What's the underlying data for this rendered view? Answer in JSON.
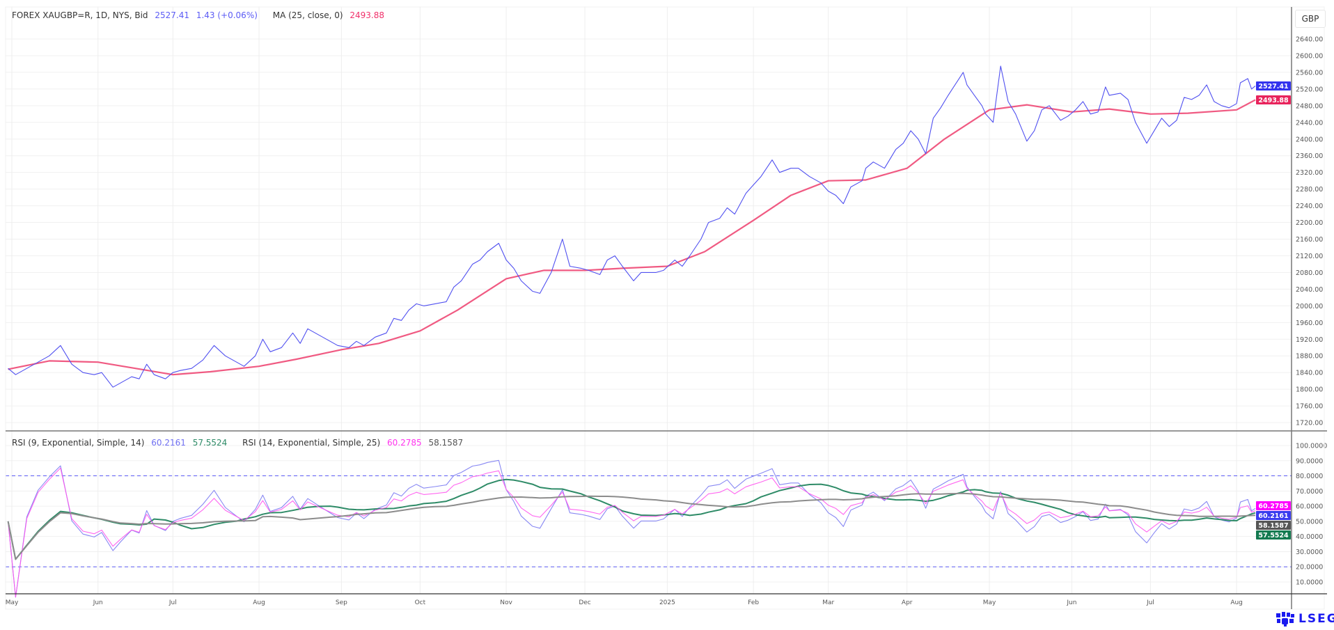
{
  "header": {
    "instrument": "FOREX XAUGBP=R, 1D, NYS, Bid",
    "last": "2527.41",
    "change": "1.43 (+0.06%)",
    "ma_label": "MA (25, close, 0)",
    "ma_value": "2493.88",
    "currency": "GBP"
  },
  "rsi_header": {
    "rsi1_label": "RSI (9, Exponential, Simple, 14)",
    "rsi1_value": "60.2161",
    "rsi1_ma_value": "57.5524",
    "rsi2_label": "RSI (14, Exponential, Simple, 25)",
    "rsi2_value": "60.2785",
    "rsi2_ma_value": "58.1587"
  },
  "logo": "LSEG",
  "colors": {
    "price": "#5050f0",
    "ma": "#f05a82",
    "rsi1": "#7b7bf2",
    "rsi1_ma": "#2e8b67",
    "rsi2": "#ff55ee",
    "rsi2_ma": "#8c8c8c",
    "price_tag": "#3333ee",
    "ma_tag": "#e8245c",
    "rsi2_tag": "#ff00ff",
    "rsi1_tag": "#3a3aee",
    "rsi2_ma_tag": "#555555",
    "rsi1_ma_tag": "#137a50"
  },
  "chart_data": [
    {
      "type": "line",
      "title": "FOREX XAUGBP=R, 1D, NYS, Bid",
      "yunit": "GBP",
      "ylim": [
        1700,
        2660
      ],
      "y_ticks": [
        "2640.00",
        "2600.00",
        "2560.00",
        "2520.00",
        "2480.00",
        "2440.00",
        "2400.00",
        "2360.00",
        "2320.00",
        "2280.00",
        "2240.00",
        "2200.00",
        "2160.00",
        "2120.00",
        "2080.00",
        "2040.00",
        "2000.00",
        "1960.00",
        "1920.00",
        "1880.00",
        "1840.00",
        "1800.00",
        "1760.00",
        "1720.00"
      ],
      "x_ticks": [
        {
          "date": "2024-05-01",
          "label": "May"
        },
        {
          "date": "2024-06-03",
          "label": "Jun"
        },
        {
          "date": "2024-07-01",
          "label": "Jul"
        },
        {
          "date": "2024-08-01",
          "label": "Aug"
        },
        {
          "date": "2024-09-02",
          "label": "Sep"
        },
        {
          "date": "2024-10-01",
          "label": "Oct"
        },
        {
          "date": "2024-11-01",
          "label": "Nov"
        },
        {
          "date": "2024-12-02",
          "label": "Dec"
        },
        {
          "date": "2025-01-01",
          "label": "2025"
        },
        {
          "date": "2025-02-03",
          "label": "Feb"
        },
        {
          "date": "2025-03-03",
          "label": "Mar"
        },
        {
          "date": "2025-04-01",
          "label": "Apr"
        },
        {
          "date": "2025-05-01",
          "label": "May"
        },
        {
          "date": "2025-06-02",
          "label": "Jun"
        },
        {
          "date": "2025-07-01",
          "label": "Jul"
        },
        {
          "date": "2025-08-01",
          "label": "Aug"
        }
      ],
      "grid": true,
      "series": [
        {
          "name": "FOREX XAUGBP=R, 1D, NYS, Bid",
          "points": [
            [
              "2024-04-30",
              1850
            ],
            [
              "2024-05-02",
              1835
            ],
            [
              "2024-05-07",
              1850
            ],
            [
              "2024-05-10",
              1865
            ],
            [
              "2024-05-15",
              1880
            ],
            [
              "2024-05-20",
              1905
            ],
            [
              "2024-05-23",
              1860
            ],
            [
              "2024-05-28",
              1840
            ],
            [
              "2024-05-31",
              1835
            ],
            [
              "2024-06-04",
              1840
            ],
            [
              "2024-06-07",
              1805
            ],
            [
              "2024-06-11",
              1815
            ],
            [
              "2024-06-14",
              1830
            ],
            [
              "2024-06-18",
              1825
            ],
            [
              "2024-06-20",
              1860
            ],
            [
              "2024-06-24",
              1835
            ],
            [
              "2024-06-27",
              1825
            ],
            [
              "2024-07-01",
              1840
            ],
            [
              "2024-07-03",
              1845
            ],
            [
              "2024-07-08",
              1850
            ],
            [
              "2024-07-11",
              1870
            ],
            [
              "2024-07-16",
              1905
            ],
            [
              "2024-07-19",
              1880
            ],
            [
              "2024-07-24",
              1865
            ],
            [
              "2024-07-26",
              1855
            ],
            [
              "2024-07-31",
              1880
            ],
            [
              "2024-08-02",
              1920
            ],
            [
              "2024-08-06",
              1890
            ],
            [
              "2024-08-09",
              1900
            ],
            [
              "2024-08-14",
              1935
            ],
            [
              "2024-08-16",
              1910
            ],
            [
              "2024-08-20",
              1945
            ],
            [
              "2024-08-23",
              1930
            ],
            [
              "2024-08-28",
              1915
            ],
            [
              "2024-08-30",
              1905
            ],
            [
              "2024-09-04",
              1900
            ],
            [
              "2024-09-06",
              1915
            ],
            [
              "2024-09-10",
              1905
            ],
            [
              "2024-09-13",
              1925
            ],
            [
              "2024-09-18",
              1935
            ],
            [
              "2024-09-20",
              1970
            ],
            [
              "2024-09-24",
              1965
            ],
            [
              "2024-09-26",
              1990
            ],
            [
              "2024-09-30",
              2005
            ],
            [
              "2024-10-02",
              2000
            ],
            [
              "2024-10-07",
              2005
            ],
            [
              "2024-10-10",
              2010
            ],
            [
              "2024-10-14",
              2045
            ],
            [
              "2024-10-16",
              2060
            ],
            [
              "2024-10-21",
              2100
            ],
            [
              "2024-10-23",
              2110
            ],
            [
              "2024-10-25",
              2130
            ],
            [
              "2024-10-30",
              2150
            ],
            [
              "2024-11-01",
              2110
            ],
            [
              "2024-11-05",
              2090
            ],
            [
              "2024-11-07",
              2060
            ],
            [
              "2024-11-12",
              2035
            ],
            [
              "2024-11-14",
              2030
            ],
            [
              "2024-11-19",
              2080
            ],
            [
              "2024-11-22",
              2160
            ],
            [
              "2024-11-26",
              2095
            ],
            [
              "2024-11-29",
              2090
            ],
            [
              "2024-12-03",
              2085
            ],
            [
              "2024-12-06",
              2075
            ],
            [
              "2024-12-10",
              2110
            ],
            [
              "2024-12-12",
              2120
            ],
            [
              "2024-12-16",
              2095
            ],
            [
              "2024-12-19",
              2060
            ],
            [
              "2024-12-23",
              2080
            ],
            [
              "2024-12-27",
              2080
            ],
            [
              "2024-12-31",
              2085
            ],
            [
              "2025-01-03",
              2110
            ],
            [
              "2025-01-07",
              2095
            ],
            [
              "2025-01-09",
              2120
            ],
            [
              "2025-01-14",
              2160
            ],
            [
              "2025-01-16",
              2200
            ],
            [
              "2025-01-21",
              2210
            ],
            [
              "2025-01-23",
              2235
            ],
            [
              "2025-01-27",
              2220
            ],
            [
              "2025-01-30",
              2270
            ],
            [
              "2025-02-03",
              2290
            ],
            [
              "2025-02-05",
              2310
            ],
            [
              "2025-02-10",
              2350
            ],
            [
              "2025-02-12",
              2320
            ],
            [
              "2025-02-17",
              2330
            ],
            [
              "2025-02-19",
              2330
            ],
            [
              "2025-02-24",
              2310
            ],
            [
              "2025-02-27",
              2295
            ],
            [
              "2025-03-03",
              2275
            ],
            [
              "2025-03-05",
              2265
            ],
            [
              "2025-03-07",
              2245
            ],
            [
              "2025-03-11",
              2285
            ],
            [
              "2025-03-14",
              2300
            ],
            [
              "2025-03-17",
              2330
            ],
            [
              "2025-03-19",
              2345
            ],
            [
              "2025-03-24",
              2330
            ],
            [
              "2025-03-27",
              2375
            ],
            [
              "2025-03-31",
              2390
            ],
            [
              "2025-04-02",
              2420
            ],
            [
              "2025-04-04",
              2400
            ],
            [
              "2025-04-08",
              2365
            ],
            [
              "2025-04-10",
              2450
            ],
            [
              "2025-04-14",
              2475
            ],
            [
              "2025-04-16",
              2505
            ],
            [
              "2025-04-22",
              2560
            ],
            [
              "2025-04-23",
              2530
            ],
            [
              "2025-04-25",
              2505
            ],
            [
              "2025-04-29",
              2480
            ],
            [
              "2025-04-30",
              2460
            ],
            [
              "2025-05-02",
              2440
            ],
            [
              "2025-05-06",
              2575
            ],
            [
              "2025-05-08",
              2490
            ],
            [
              "2025-05-12",
              2460
            ],
            [
              "2025-05-15",
              2395
            ],
            [
              "2025-05-19",
              2420
            ],
            [
              "2025-05-21",
              2470
            ],
            [
              "2025-05-23",
              2480
            ],
            [
              "2025-05-28",
              2445
            ],
            [
              "2025-05-30",
              2455
            ],
            [
              "2025-06-03",
              2470
            ],
            [
              "2025-06-05",
              2490
            ],
            [
              "2025-06-09",
              2460
            ],
            [
              "2025-06-11",
              2465
            ],
            [
              "2025-06-13",
              2525
            ],
            [
              "2025-06-16",
              2505
            ],
            [
              "2025-06-19",
              2510
            ],
            [
              "2025-06-23",
              2495
            ],
            [
              "2025-06-25",
              2440
            ],
            [
              "2025-06-30",
              2390
            ],
            [
              "2025-07-02",
              2420
            ],
            [
              "2025-07-04",
              2450
            ],
            [
              "2025-07-08",
              2430
            ],
            [
              "2025-07-10",
              2445
            ],
            [
              "2025-07-14",
              2500
            ],
            [
              "2025-07-16",
              2495
            ],
            [
              "2025-07-18",
              2505
            ],
            [
              "2025-07-22",
              2530
            ],
            [
              "2025-07-24",
              2490
            ],
            [
              "2025-07-28",
              2480
            ],
            [
              "2025-07-30",
              2475
            ],
            [
              "2025-08-01",
              2485
            ],
            [
              "2025-08-04",
              2535
            ],
            [
              "2025-08-06",
              2545
            ],
            [
              "2025-08-07",
              2520
            ],
            [
              "2025-08-08",
              2527.41
            ]
          ]
        },
        {
          "name": "MA (25, close, 0)",
          "points": [
            [
              "2024-04-30",
              1848
            ],
            [
              "2024-05-15",
              1868
            ],
            [
              "2024-06-03",
              1865
            ],
            [
              "2024-06-17",
              1850
            ],
            [
              "2024-07-01",
              1835
            ],
            [
              "2024-07-15",
              1842
            ],
            [
              "2024-08-01",
              1855
            ],
            [
              "2024-08-15",
              1872
            ],
            [
              "2024-09-02",
              1895
            ],
            [
              "2024-09-16",
              1910
            ],
            [
              "2024-10-01",
              1940
            ],
            [
              "2024-10-15",
              1990
            ],
            [
              "2024-11-01",
              2065
            ],
            [
              "2024-11-15",
              2085
            ],
            [
              "2024-12-02",
              2085
            ],
            [
              "2024-12-16",
              2090
            ],
            [
              "2025-01-01",
              2095
            ],
            [
              "2025-01-15",
              2130
            ],
            [
              "2025-02-03",
              2205
            ],
            [
              "2025-02-17",
              2265
            ],
            [
              "2025-03-03",
              2300
            ],
            [
              "2025-03-17",
              2302
            ],
            [
              "2025-04-01",
              2330
            ],
            [
              "2025-04-15",
              2400
            ],
            [
              "2025-05-01",
              2470
            ],
            [
              "2025-05-15",
              2482
            ],
            [
              "2025-06-02",
              2465
            ],
            [
              "2025-06-16",
              2472
            ],
            [
              "2025-07-01",
              2460
            ],
            [
              "2025-07-15",
              2462
            ],
            [
              "2025-08-01",
              2470
            ],
            [
              "2025-08-08",
              2493.88
            ]
          ]
        }
      ]
    },
    {
      "type": "line",
      "title": "RSI",
      "ylim": [
        0,
        105
      ],
      "y_ticks": [
        "100.0000",
        "90.0000",
        "80.0000",
        "70.0000",
        "60.0000",
        "50.0000",
        "40.0000",
        "30.0000",
        "20.0000",
        "10.0000"
      ],
      "bands": [
        80,
        20
      ],
      "series": [
        {
          "name": "RSI (9, Exponential, Simple, 14)",
          "period": 9,
          "ma_period": 14,
          "last": 60.2161,
          "ma_last": 57.5524
        },
        {
          "name": "RSI (14, Exponential, Simple, 25)",
          "period": 14,
          "ma_period": 25,
          "last": 60.2785,
          "ma_last": 58.1587
        }
      ]
    }
  ]
}
